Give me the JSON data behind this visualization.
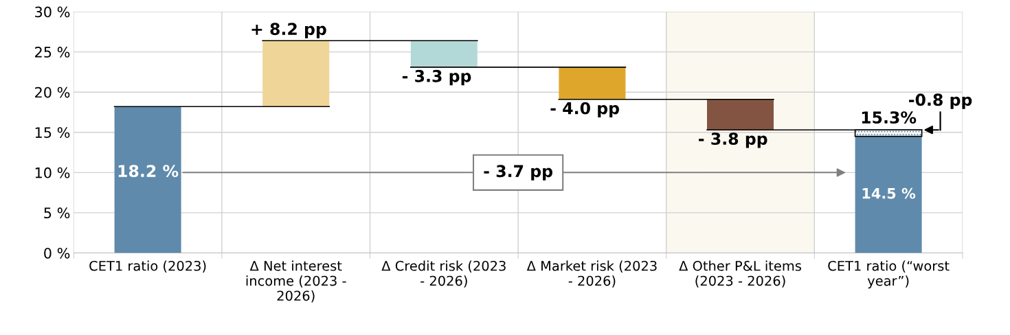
{
  "chart_data": {
    "type": "bar",
    "categories": [
      "CET1 ratio (2023)",
      "Δ Net interest income (2023 - 2026)",
      "Δ Credit risk (2023 - 2026)",
      "Δ Market risk (2023 - 2026)",
      "Δ Other P&L items (2023 - 2026)",
      "CET1 ratio (“worst year”)"
    ],
    "series": [
      {
        "colors": [
          "#5f8aab",
          "#efd598",
          "#b3d8d8",
          "#dea72c",
          "#845442",
          "#5f8aab"
        ],
        "values": [
          18.2,
          8.2,
          -3.3,
          -4.0,
          -3.8,
          14.5
        ],
        "base": [
          0,
          18.2,
          26.4,
          23.1,
          19.1,
          0
        ],
        "value_labels": [
          "18.2 %",
          "+ 8.2 pp",
          "- 3.3 pp",
          "- 4.0 pp",
          "- 3.8 pp",
          "14.5 %"
        ]
      },
      {
        "color": "#5f8aab",
        "values": [
          null,
          null,
          null,
          null,
          null,
          -0.8
        ],
        "base": [
          null,
          null,
          null,
          null,
          null,
          15.3
        ],
        "value_labels": [
          null,
          null,
          null,
          null,
          null,
          "-0.8 pp"
        ]
      }
    ],
    "annotations": [
      "- 3.7 pp",
      {
        "text": "15.3%",
        "x": "CET1 ratio (“worst year”)",
        "y": 15.3
      }
    ],
    "bands": [
      {
        "axis": "x",
        "from": "Δ Other P&L items (2023 - 2026)",
        "to": "Δ Other P&L items (2023 - 2026)",
        "color": "#fbf8f0"
      }
    ],
    "ylim": [
      0,
      30
    ],
    "yticks": [
      {
        "value": 0,
        "label": "0 %"
      },
      {
        "value": 5,
        "label": "5 %"
      },
      {
        "value": 10,
        "label": "10 %"
      },
      {
        "value": 15,
        "label": "15 %"
      },
      {
        "value": 20,
        "label": "20 %"
      },
      {
        "value": 25,
        "label": "25 %"
      },
      {
        "value": 30,
        "label": "30 %"
      }
    ],
    "grid": true,
    "legend": false
  }
}
